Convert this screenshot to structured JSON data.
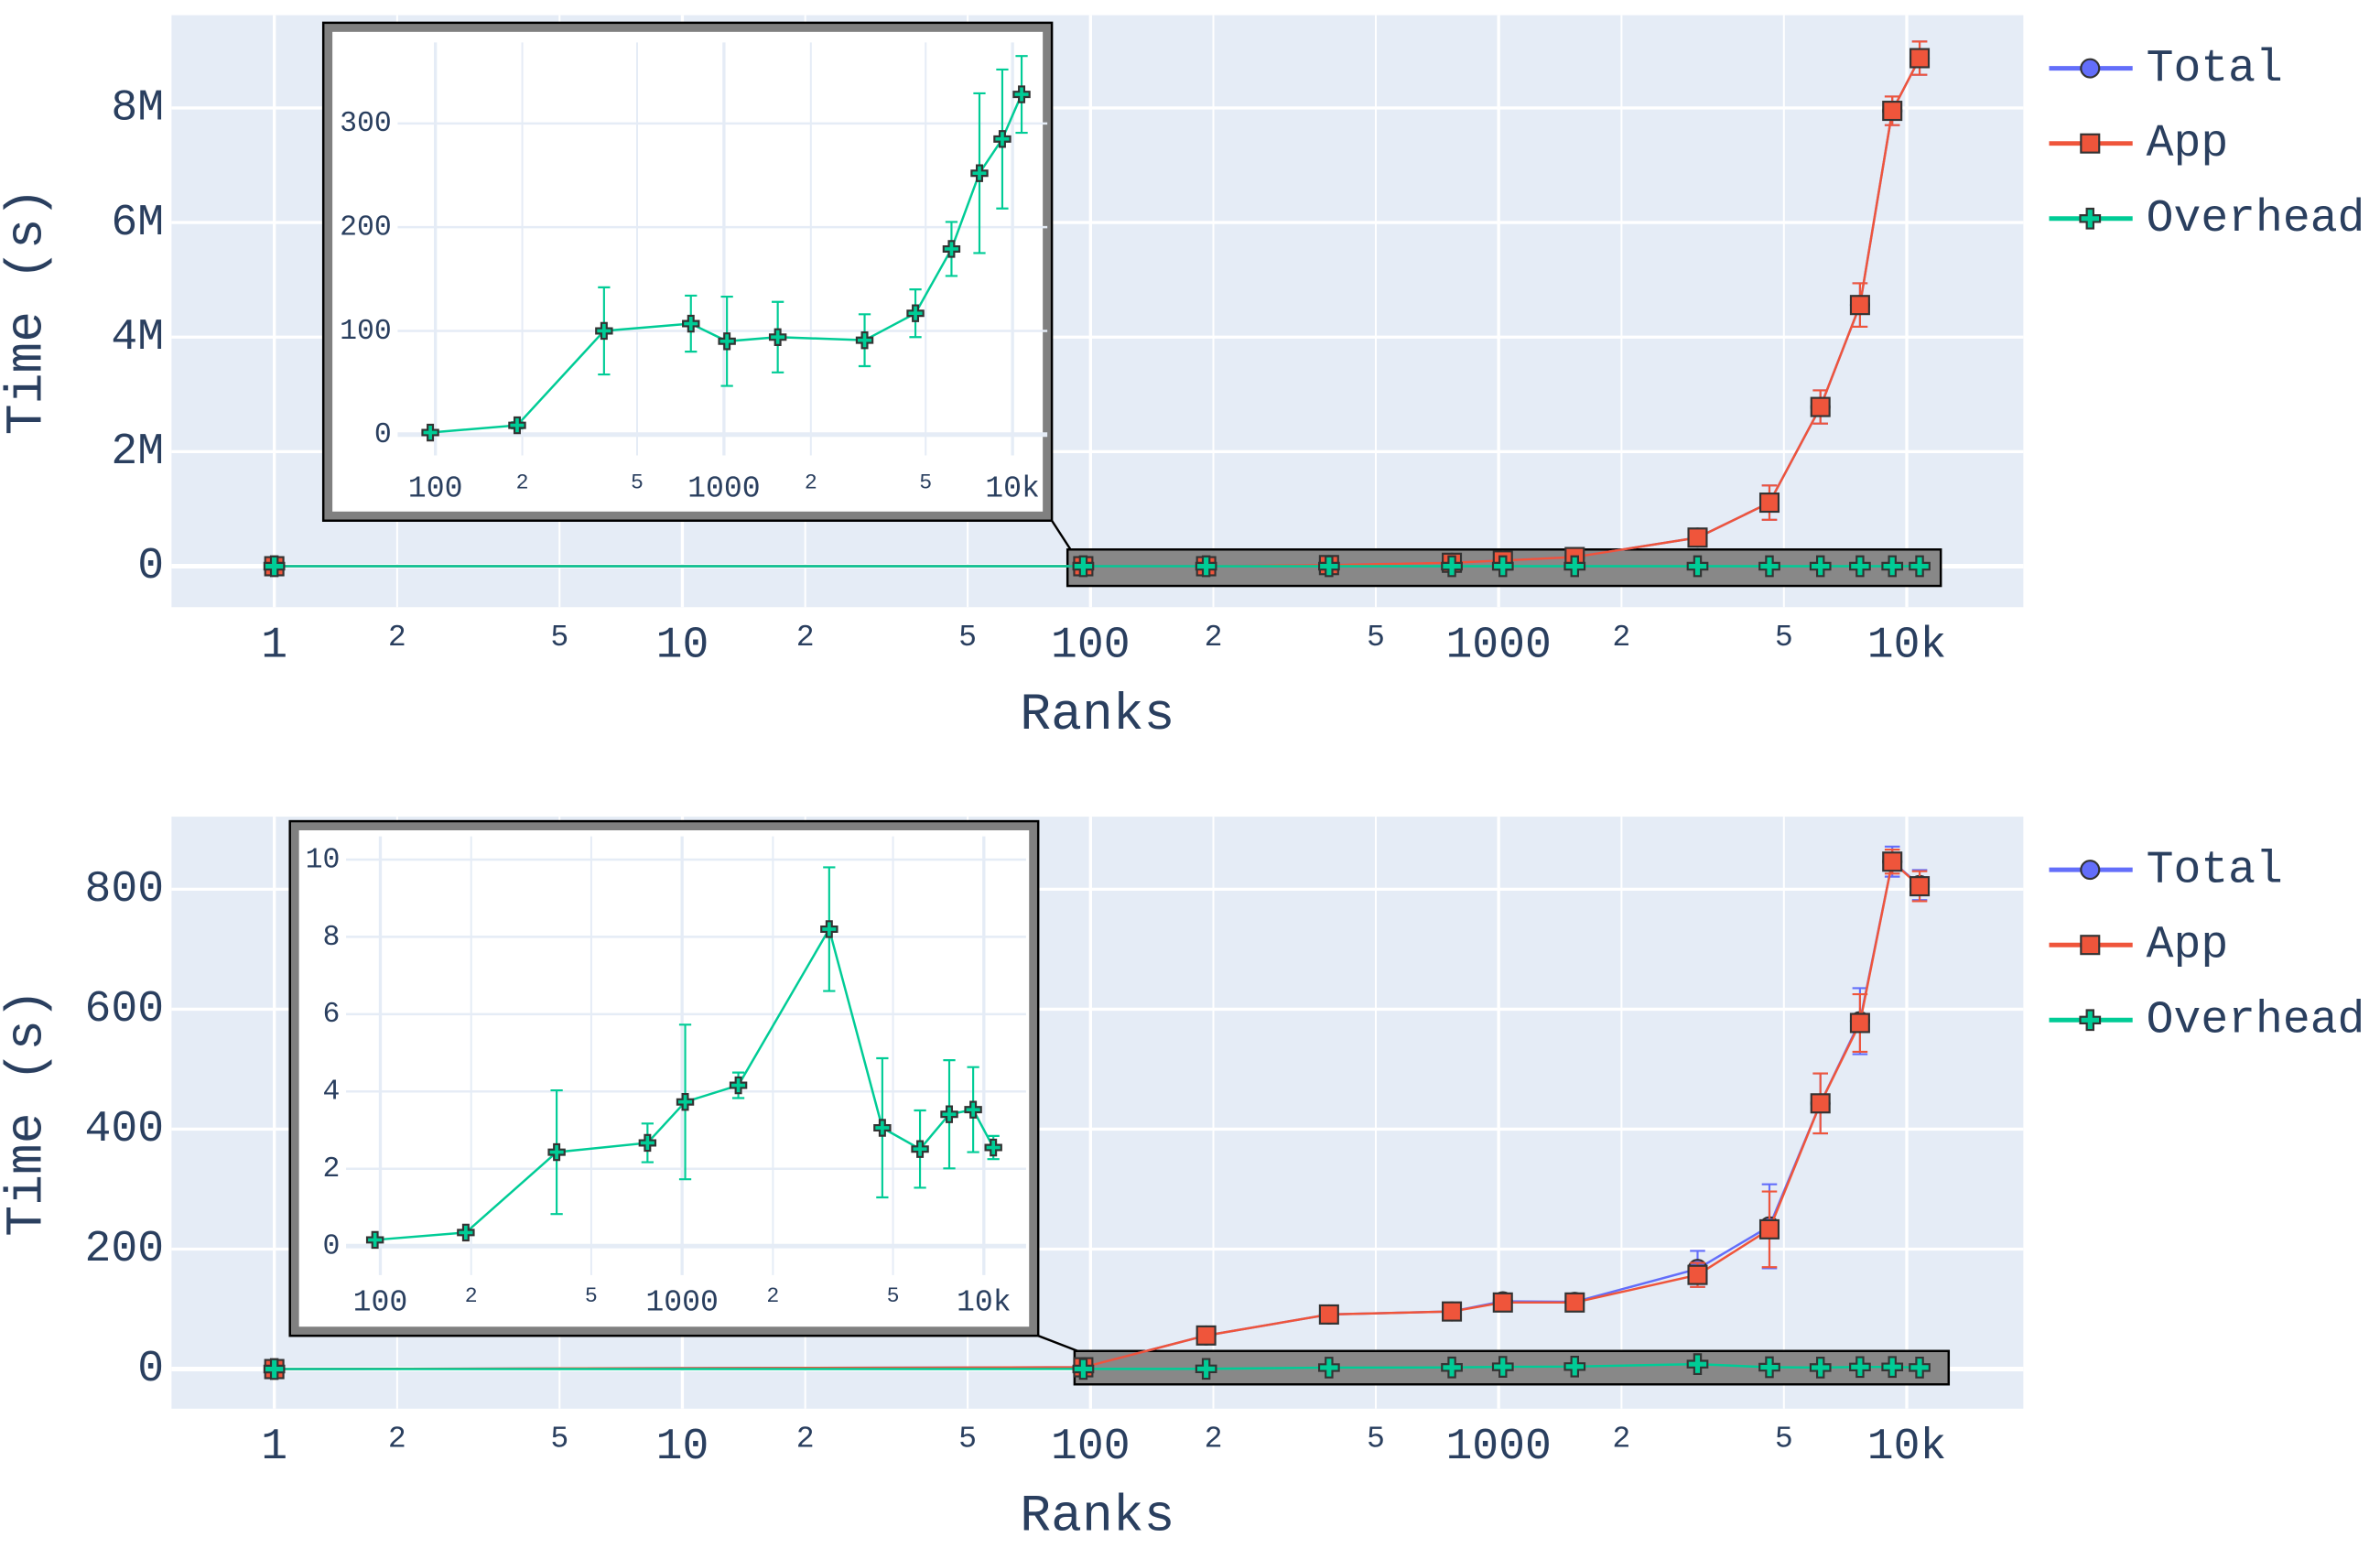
{
  "chart_data": [
    {
      "type": "line",
      "xlabel": "Ranks",
      "ylabel": "Time (s)",
      "xlog": true,
      "grid": true,
      "legend": "right",
      "x": [
        1,
        96,
        192,
        384,
        768,
        1024,
        1536,
        3072,
        4608,
        6144,
        7680,
        9216,
        10752
      ],
      "series": [
        {
          "name": "Total",
          "color": "#636efa",
          "marker": "circle",
          "values": [
            0,
            0,
            0,
            20000,
            60000,
            100000,
            160000,
            500000,
            1110000,
            2780000,
            4560000,
            7950000,
            8870000
          ],
          "errors": [
            0,
            0,
            0,
            0,
            0,
            0,
            0,
            50000,
            300000,
            290000,
            380000,
            250000,
            290000
          ]
        },
        {
          "name": "App",
          "color": "#ef553b",
          "marker": "square",
          "values": [
            0,
            0,
            0,
            20000,
            60000,
            100000,
            160000,
            500000,
            1110000,
            2780000,
            4560000,
            7950000,
            8870000
          ],
          "errors": [
            0,
            0,
            0,
            0,
            0,
            0,
            0,
            50000,
            300000,
            290000,
            380000,
            250000,
            290000
          ]
        },
        {
          "name": "Overhead",
          "color": "#00cc96",
          "marker": "cross",
          "values": [
            0,
            2,
            9,
            100,
            107,
            90,
            94,
            91,
            117,
            179,
            252,
            285,
            328
          ],
          "errors": [
            0,
            0,
            3,
            42,
            27,
            43,
            34,
            25,
            23,
            26,
            77,
            67,
            37
          ]
        }
      ],
      "xlim": [
        0.56,
        19300
      ],
      "ylim": [
        -715000,
        9620000
      ],
      "xticks": [
        1,
        {
          "value": 2,
          "label": "2"
        },
        {
          "value": 5,
          "label": "5"
        },
        10,
        {
          "value": 20,
          "label": "2"
        },
        {
          "value": 50,
          "label": "5"
        },
        100,
        {
          "value": 200,
          "label": "2"
        },
        {
          "value": 500,
          "label": "5"
        },
        1000,
        {
          "value": 2000,
          "label": "2"
        },
        {
          "value": 5000,
          "label": "5"
        },
        {
          "value": 10000,
          "label": "10k"
        }
      ],
      "yticks": [
        0,
        {
          "value": 2000000,
          "label": "2M"
        },
        {
          "value": 4000000,
          "label": "4M"
        },
        {
          "value": 6000000,
          "label": "6M"
        },
        {
          "value": 8000000,
          "label": "8M"
        }
      ],
      "inset": {
        "series": "Overhead",
        "xlim": [
          74,
          13200
        ],
        "ylim": [
          -20,
          378
        ],
        "xticks": [
          100,
          {
            "value": 200,
            "label": "2"
          },
          {
            "value": 500,
            "label": "5"
          },
          1000,
          {
            "value": 2000,
            "label": "2"
          },
          {
            "value": 5000,
            "label": "5"
          },
          {
            "value": 10000,
            "label": "10k"
          }
        ],
        "yticks": [
          0,
          100,
          200,
          300
        ]
      }
    },
    {
      "type": "line",
      "xlabel": "Ranks",
      "ylabel": "Time (s)",
      "xlog": true,
      "grid": true,
      "legend": "right",
      "x": [
        1,
        96,
        192,
        384,
        768,
        1024,
        1536,
        3072,
        4608,
        6144,
        7680,
        9216,
        10752
      ],
      "series": [
        {
          "name": "Total",
          "color": "#636efa",
          "marker": "circle",
          "values": [
            0,
            3,
            56,
            91,
            96,
            113,
            112,
            167,
            238,
            443,
            580,
            846,
            807
          ],
          "errors": [
            0,
            0,
            0,
            5,
            5,
            8,
            8,
            30,
            70,
            50,
            55,
            25,
            25
          ]
        },
        {
          "name": "App",
          "color": "#ef553b",
          "marker": "square",
          "values": [
            0,
            3,
            56,
            91,
            96,
            111,
            111,
            157,
            233,
            443,
            577,
            846,
            805
          ],
          "errors": [
            0,
            0,
            0,
            5,
            5,
            8,
            8,
            20,
            63,
            50,
            48,
            20,
            25
          ]
        },
        {
          "name": "Overhead",
          "color": "#00cc96",
          "marker": "cross",
          "values": [
            0,
            0.16,
            0.35,
            2.43,
            2.67,
            3.73,
            4.16,
            8.2,
            3.06,
            2.51,
            3.41,
            3.53,
            2.55
          ],
          "errors": [
            0,
            0,
            0,
            1.6,
            0.5,
            2,
            0.33,
            1.6,
            1.8,
            1,
            1.4,
            1.1,
            0.3
          ]
        }
      ],
      "xlim": [
        0.56,
        19300
      ],
      "ylim": [
        -66,
        921
      ],
      "xticks": [
        1,
        {
          "value": 2,
          "label": "2"
        },
        {
          "value": 5,
          "label": "5"
        },
        10,
        {
          "value": 20,
          "label": "2"
        },
        {
          "value": 50,
          "label": "5"
        },
        100,
        {
          "value": 200,
          "label": "2"
        },
        {
          "value": 500,
          "label": "5"
        },
        1000,
        {
          "value": 2000,
          "label": "2"
        },
        {
          "value": 5000,
          "label": "5"
        },
        {
          "value": 10000,
          "label": "10k"
        }
      ],
      "yticks": [
        0,
        200,
        400,
        600,
        800
      ],
      "inset": {
        "series": "Overhead",
        "xlim": [
          77,
          13800
        ],
        "ylim": [
          -0.75,
          10.6
        ],
        "xticks": [
          100,
          {
            "value": 200,
            "label": "2"
          },
          {
            "value": 500,
            "label": "5"
          },
          1000,
          {
            "value": 2000,
            "label": "2"
          },
          {
            "value": 5000,
            "label": "5"
          },
          {
            "value": 10000,
            "label": "10k"
          }
        ],
        "yticks": [
          0,
          2,
          4,
          6,
          8,
          10
        ]
      }
    }
  ]
}
